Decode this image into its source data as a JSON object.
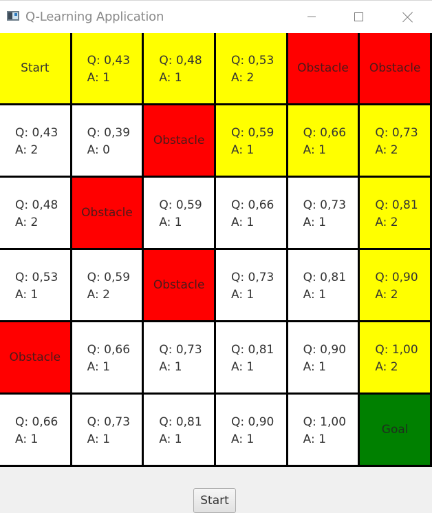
{
  "window": {
    "title": "Q-Learning Application"
  },
  "colors": {
    "start": "#ffff00",
    "path": "#ffff00",
    "obstacle": "#ff0000",
    "goal": "#008000",
    "empty": "#ffffff",
    "grid_line": "#000000"
  },
  "grid": {
    "rows": [
      [
        {
          "type": "start",
          "label": "Start"
        },
        {
          "type": "path",
          "q": "Q: 0,43",
          "a": "A: 1"
        },
        {
          "type": "path",
          "q": "Q: 0,48",
          "a": "A: 1"
        },
        {
          "type": "path",
          "q": "Q: 0,53",
          "a": "A: 2"
        },
        {
          "type": "obstacle",
          "label": "Obstacle"
        },
        {
          "type": "obstacle",
          "label": "Obstacle"
        }
      ],
      [
        {
          "type": "empty",
          "q": "Q: 0,43",
          "a": "A: 2"
        },
        {
          "type": "empty",
          "q": "Q: 0,39",
          "a": "A: 0"
        },
        {
          "type": "obstacle",
          "label": "Obstacle"
        },
        {
          "type": "path",
          "q": "Q: 0,59",
          "a": "A: 1"
        },
        {
          "type": "path",
          "q": "Q: 0,66",
          "a": "A: 1"
        },
        {
          "type": "path",
          "q": "Q: 0,73",
          "a": "A: 2"
        }
      ],
      [
        {
          "type": "empty",
          "q": "Q: 0,48",
          "a": "A: 2"
        },
        {
          "type": "obstacle",
          "label": "Obstacle"
        },
        {
          "type": "empty",
          "q": "Q: 0,59",
          "a": "A: 1"
        },
        {
          "type": "empty",
          "q": "Q: 0,66",
          "a": "A: 1"
        },
        {
          "type": "empty",
          "q": "Q: 0,73",
          "a": "A: 1"
        },
        {
          "type": "path",
          "q": "Q: 0,81",
          "a": "A: 2"
        }
      ],
      [
        {
          "type": "empty",
          "q": "Q: 0,53",
          "a": "A: 1"
        },
        {
          "type": "empty",
          "q": "Q: 0,59",
          "a": "A: 2"
        },
        {
          "type": "obstacle",
          "label": "Obstacle"
        },
        {
          "type": "empty",
          "q": "Q: 0,73",
          "a": "A: 1"
        },
        {
          "type": "empty",
          "q": "Q: 0,81",
          "a": "A: 1"
        },
        {
          "type": "path",
          "q": "Q: 0,90",
          "a": "A: 2"
        }
      ],
      [
        {
          "type": "obstacle",
          "label": "Obstacle"
        },
        {
          "type": "empty",
          "q": "Q: 0,66",
          "a": "A: 1"
        },
        {
          "type": "empty",
          "q": "Q: 0,73",
          "a": "A: 1"
        },
        {
          "type": "empty",
          "q": "Q: 0,81",
          "a": "A: 1"
        },
        {
          "type": "empty",
          "q": "Q: 0,90",
          "a": "A: 1"
        },
        {
          "type": "path",
          "q": "Q: 1,00",
          "a": "A: 2"
        }
      ],
      [
        {
          "type": "empty",
          "q": "Q: 0,66",
          "a": "A: 1"
        },
        {
          "type": "empty",
          "q": "Q: 0,73",
          "a": "A: 1"
        },
        {
          "type": "empty",
          "q": "Q: 0,81",
          "a": "A: 1"
        },
        {
          "type": "empty",
          "q": "Q: 0,90",
          "a": "A: 1"
        },
        {
          "type": "empty",
          "q": "Q: 1,00",
          "a": "A: 1"
        },
        {
          "type": "goal",
          "label": "Goal"
        }
      ]
    ]
  },
  "footer": {
    "start_button": "Start"
  }
}
